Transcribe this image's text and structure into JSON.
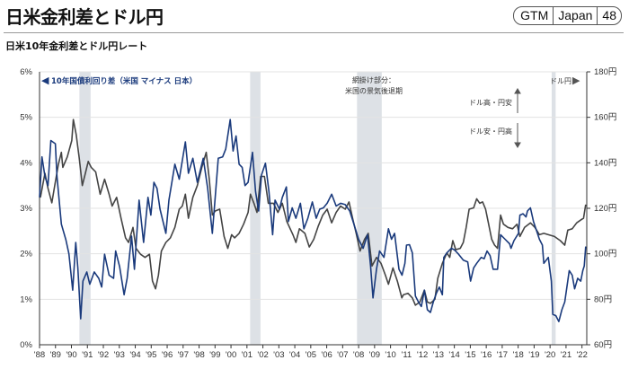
{
  "header": {
    "title": "日米金利差とドル円",
    "badge": [
      "GTM",
      "Japan",
      "48"
    ]
  },
  "subtitle": "日米10年金利差とドル円レート",
  "colors": {
    "spread": "#1a3a7c",
    "usdjpy": "#444444",
    "recession": "#dde1e6",
    "grid": "#e3e3e3"
  },
  "chart_data": {
    "type": "line",
    "title": "日米10年金利差とドル円レート",
    "x_range": [
      1988,
      2022.3
    ],
    "x_ticks": [
      "'88",
      "'89",
      "'90",
      "'91",
      "'92",
      "'93",
      "'94",
      "'95",
      "'96",
      "'97",
      "'98",
      "'99",
      "'00",
      "'01",
      "'02",
      "'03",
      "'04",
      "'05",
      "'06",
      "'07",
      "'08",
      "'09",
      "'10",
      "'11",
      "'12",
      "'13",
      "'14",
      "'15",
      "'16",
      "'17",
      "'18",
      "'19",
      "'20",
      "'21",
      "'22"
    ],
    "y_left": {
      "range": [
        0,
        6
      ],
      "ticks": [
        "0%",
        "1%",
        "2%",
        "3%",
        "4%",
        "5%",
        "6%"
      ]
    },
    "y_right": {
      "range": [
        60,
        180
      ],
      "ticks": [
        "60円",
        "80円",
        "100円",
        "120円",
        "140円",
        "160円",
        "180円"
      ]
    },
    "grid": true,
    "recessions": [
      [
        1990.5,
        1991.2
      ],
      [
        2001.2,
        2001.85
      ],
      [
        2007.9,
        2009.45
      ],
      [
        2020.1,
        2020.35
      ]
    ],
    "series": [
      {
        "name": "10年国債利回り差（米国 マイナス 日本）",
        "axis": "left",
        "arrow": "◀",
        "x": [
          1988.0,
          1988.15,
          1988.34,
          1988.53,
          1988.71,
          1988.99,
          1989.09,
          1989.37,
          1989.65,
          1989.84,
          1990.08,
          1990.27,
          1990.4,
          1990.58,
          1990.72,
          1990.96,
          1991.15,
          1991.43,
          1991.71,
          1991.9,
          1992.08,
          1992.36,
          1992.64,
          1992.77,
          1993.02,
          1993.3,
          1993.49,
          1993.77,
          1993.95,
          1994.24,
          1994.52,
          1994.8,
          1994.98,
          1995.17,
          1995.36,
          1995.55,
          1995.92,
          1996.11,
          1996.48,
          1996.76,
          1997.14,
          1997.33,
          1997.61,
          1997.89,
          1998.26,
          1998.54,
          1998.83,
          1999.01,
          1999.2,
          1999.48,
          1999.67,
          1999.95,
          2000.13,
          2000.32,
          2000.51,
          2000.7,
          2000.88,
          2001.07,
          2001.35,
          2001.54,
          2001.73,
          2001.91,
          2002.16,
          2002.38,
          2002.61,
          2002.76,
          2003.04,
          2003.22,
          2003.47,
          2003.6,
          2003.84,
          2004.07,
          2004.35,
          2004.57,
          2004.82,
          2005.1,
          2005.34,
          2005.56,
          2005.79,
          2006.03,
          2006.31,
          2006.59,
          2006.87,
          2007.16,
          2007.44,
          2007.77,
          2008.0,
          2008.28,
          2008.56,
          2008.75,
          2008.9,
          2009.12,
          2009.31,
          2009.59,
          2009.87,
          2010.06,
          2010.25,
          2010.53,
          2010.72,
          2010.9,
          2011.0,
          2011.19,
          2011.37,
          2011.56,
          2011.75,
          2011.93,
          2012.12,
          2012.31,
          2012.5,
          2012.68,
          2012.87,
          2013.06,
          2013.25,
          2013.34,
          2013.53,
          2013.81,
          2013.99,
          2014.27,
          2014.56,
          2014.84,
          2015.02,
          2015.21,
          2015.4,
          2015.68,
          2015.87,
          2016.05,
          2016.24,
          2016.43,
          2016.71,
          2016.9,
          2017.18,
          2017.46,
          2017.55,
          2017.74,
          2018.02,
          2018.11,
          2018.3,
          2018.49,
          2018.58,
          2018.77,
          2018.96,
          2019.14,
          2019.33,
          2019.52,
          2019.61,
          2019.89,
          2020.08,
          2020.17,
          2020.36,
          2020.55,
          2020.74,
          2020.92,
          2021.2,
          2021.39,
          2021.54,
          2021.73,
          2021.92,
          2022.05,
          2022.14,
          2022.23
        ],
        "y": [
          3.24,
          4.13,
          3.7,
          3.5,
          4.49,
          4.42,
          3.7,
          2.65,
          2.31,
          2.0,
          1.2,
          2.25,
          1.7,
          0.57,
          1.4,
          1.6,
          1.33,
          1.6,
          1.46,
          1.27,
          1.99,
          1.53,
          1.46,
          2.06,
          1.72,
          1.1,
          1.46,
          2.39,
          1.66,
          3.18,
          2.25,
          3.24,
          2.85,
          3.57,
          3.44,
          2.98,
          2.45,
          3.18,
          3.97,
          3.64,
          4.46,
          3.77,
          4.1,
          3.57,
          4.1,
          3.44,
          2.45,
          3.24,
          4.1,
          4.13,
          4.3,
          4.95,
          4.26,
          4.59,
          3.97,
          3.9,
          3.5,
          3.57,
          4.23,
          3.37,
          2.94,
          3.73,
          3.99,
          3.37,
          2.42,
          3.18,
          2.98,
          3.24,
          3.47,
          2.71,
          3.01,
          2.78,
          3.11,
          2.55,
          2.78,
          3.14,
          2.78,
          2.98,
          3.01,
          3.11,
          3.31,
          3.05,
          3.11,
          3.08,
          2.94,
          2.58,
          2.32,
          2.12,
          2.42,
          1.73,
          1.03,
          1.66,
          2.06,
          1.92,
          2.55,
          2.32,
          2.45,
          1.66,
          1.53,
          1.79,
          2.19,
          2.2,
          2.02,
          1.07,
          0.94,
          0.84,
          1.2,
          0.77,
          0.71,
          0.94,
          1.13,
          1.27,
          1.1,
          1.92,
          2.02,
          2.12,
          2.09,
          1.99,
          1.86,
          1.82,
          1.4,
          1.69,
          1.79,
          1.92,
          1.89,
          2.06,
          1.96,
          1.66,
          1.66,
          2.42,
          2.32,
          2.22,
          2.12,
          2.29,
          2.45,
          2.85,
          2.88,
          2.81,
          2.94,
          3.01,
          2.71,
          2.52,
          2.32,
          2.19,
          1.79,
          1.92,
          1.4,
          0.67,
          0.64,
          0.51,
          0.77,
          0.94,
          1.63,
          1.53,
          1.23,
          1.46,
          1.4,
          1.63,
          1.73,
          2.16
        ]
      },
      {
        "name": "ドル円",
        "axis": "right",
        "arrow": "▶",
        "x": [
          1988.0,
          1988.06,
          1988.34,
          1988.53,
          1988.77,
          1988.95,
          1989.18,
          1989.37,
          1989.46,
          1989.74,
          1990.02,
          1990.12,
          1990.3,
          1990.49,
          1990.68,
          1990.87,
          1991.05,
          1991.24,
          1991.52,
          1991.8,
          1992.08,
          1992.36,
          1992.55,
          1992.83,
          1993.11,
          1993.39,
          1993.58,
          1993.86,
          1994.05,
          1994.33,
          1994.61,
          1994.89,
          1995.08,
          1995.27,
          1995.45,
          1995.64,
          1995.92,
          1996.2,
          1996.48,
          1996.76,
          1996.95,
          1997.14,
          1997.33,
          1997.61,
          1997.89,
          1998.17,
          1998.45,
          1998.64,
          1998.83,
          1999.01,
          1999.29,
          1999.57,
          1999.8,
          2000.04,
          2000.23,
          2000.51,
          2000.79,
          2001.07,
          2001.22,
          2001.44,
          2001.63,
          2001.86,
          2002.1,
          2002.34,
          2002.66,
          2002.94,
          2003.22,
          2003.5,
          2003.88,
          2004.07,
          2004.29,
          2004.63,
          2004.91,
          2005.19,
          2005.47,
          2005.75,
          2006.03,
          2006.31,
          2006.59,
          2006.87,
          2007.16,
          2007.4,
          2007.62,
          2007.85,
          2008.09,
          2008.37,
          2008.6,
          2008.84,
          2009.12,
          2009.4,
          2009.68,
          2009.87,
          2010.15,
          2010.43,
          2010.71,
          2010.81,
          2011.09,
          2011.37,
          2011.56,
          2011.84,
          2012.12,
          2012.31,
          2012.5,
          2012.78,
          2012.96,
          2013.25,
          2013.53,
          2013.71,
          2013.9,
          2014.09,
          2014.37,
          2014.56,
          2014.74,
          2014.93,
          2015.21,
          2015.4,
          2015.59,
          2015.77,
          2015.96,
          2016.15,
          2016.34,
          2016.52,
          2016.71,
          2016.9,
          2017.08,
          2017.36,
          2017.65,
          2017.93,
          2018.11,
          2018.4,
          2018.77,
          2019.05,
          2019.33,
          2019.61,
          2019.89,
          2020.27,
          2020.64,
          2020.92,
          2021.11,
          2021.39,
          2021.67,
          2021.95,
          2022.1,
          2022.23
        ],
        "y": [
          124.8,
          125,
          135.4,
          128.8,
          122.4,
          130,
          139.4,
          144.6,
          138,
          142.6,
          149.8,
          159,
          152.4,
          142,
          130,
          135.4,
          140.6,
          138,
          136,
          126.2,
          132.8,
          126.2,
          121,
          124.8,
          115.6,
          107,
          105,
          111.6,
          102.4,
          99.8,
          98.4,
          99.8,
          88,
          84.6,
          90.6,
          101.2,
          105,
          107,
          111.6,
          119.6,
          121,
          126.2,
          115.6,
          124.8,
          130,
          138,
          144.6,
          132.8,
          117,
          118.8,
          119.6,
          107.6,
          102.4,
          108.4,
          107,
          109,
          113,
          118.2,
          126.2,
          122.2,
          118.2,
          134,
          134,
          122.2,
          122.2,
          118.2,
          122.2,
          114.2,
          108.4,
          105,
          111,
          109,
          103,
          106.4,
          112.2,
          117,
          119.6,
          113.6,
          118.2,
          121,
          119.6,
          122.8,
          115.6,
          109,
          101.2,
          106.4,
          109,
          94.6,
          98.4,
          95.8,
          90.6,
          86.6,
          93.8,
          88,
          80.6,
          82,
          82.6,
          80.6,
          77.4,
          78.8,
          84,
          78.8,
          78.2,
          80,
          89.2,
          95.8,
          100.4,
          98.4,
          105.8,
          101.8,
          102.4,
          105,
          111.6,
          119.6,
          120.2,
          124.2,
          122.2,
          122.8,
          119.6,
          113,
          106.4,
          103.8,
          102.4,
          117,
          113,
          111.6,
          111,
          113,
          107.6,
          111.6,
          113.6,
          111.6,
          108.4,
          109,
          108.4,
          107.6,
          105.8,
          103.8,
          110.4,
          111,
          113.6,
          115,
          115.6,
          121.6
        ]
      }
    ],
    "annotations": {
      "recession_label": [
        "網掛け部分：",
        "米国の景気後退期"
      ],
      "up_label": "ドル高・円安",
      "down_label": "ドル安・円高"
    }
  }
}
